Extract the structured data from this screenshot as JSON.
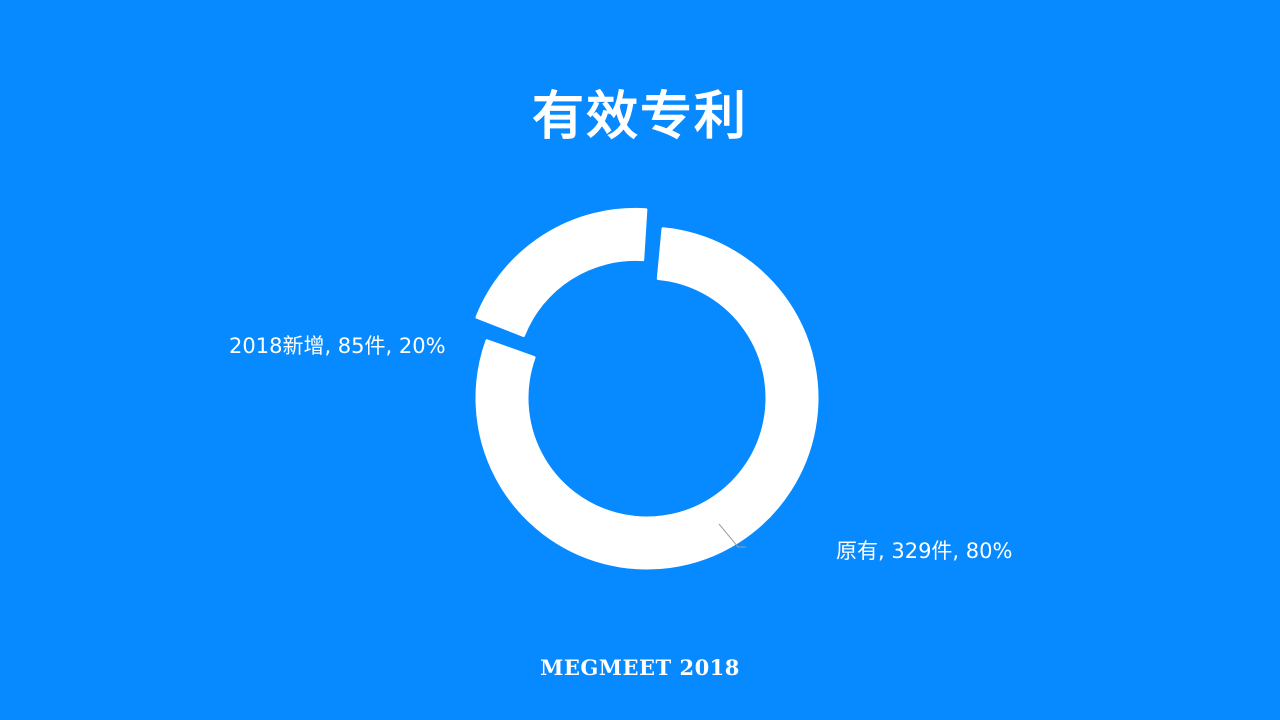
{
  "title": "有效专利",
  "footer": "MEGMEET 2018",
  "colors": {
    "background": "#0789ff",
    "slice": "#ffffff",
    "leader_line": "#a0a0a0"
  },
  "chart_data": {
    "type": "pie",
    "donut": true,
    "title": "有效专利",
    "slices": [
      {
        "label": "原有",
        "value": 329,
        "unit": "件",
        "percent": 80,
        "data_label": "原有, 329件, 80%"
      },
      {
        "label": "2018新增",
        "value": 85,
        "unit": "件",
        "percent": 20,
        "data_label": "2018新增, 85件, 20%",
        "exploded": true
      }
    ]
  }
}
